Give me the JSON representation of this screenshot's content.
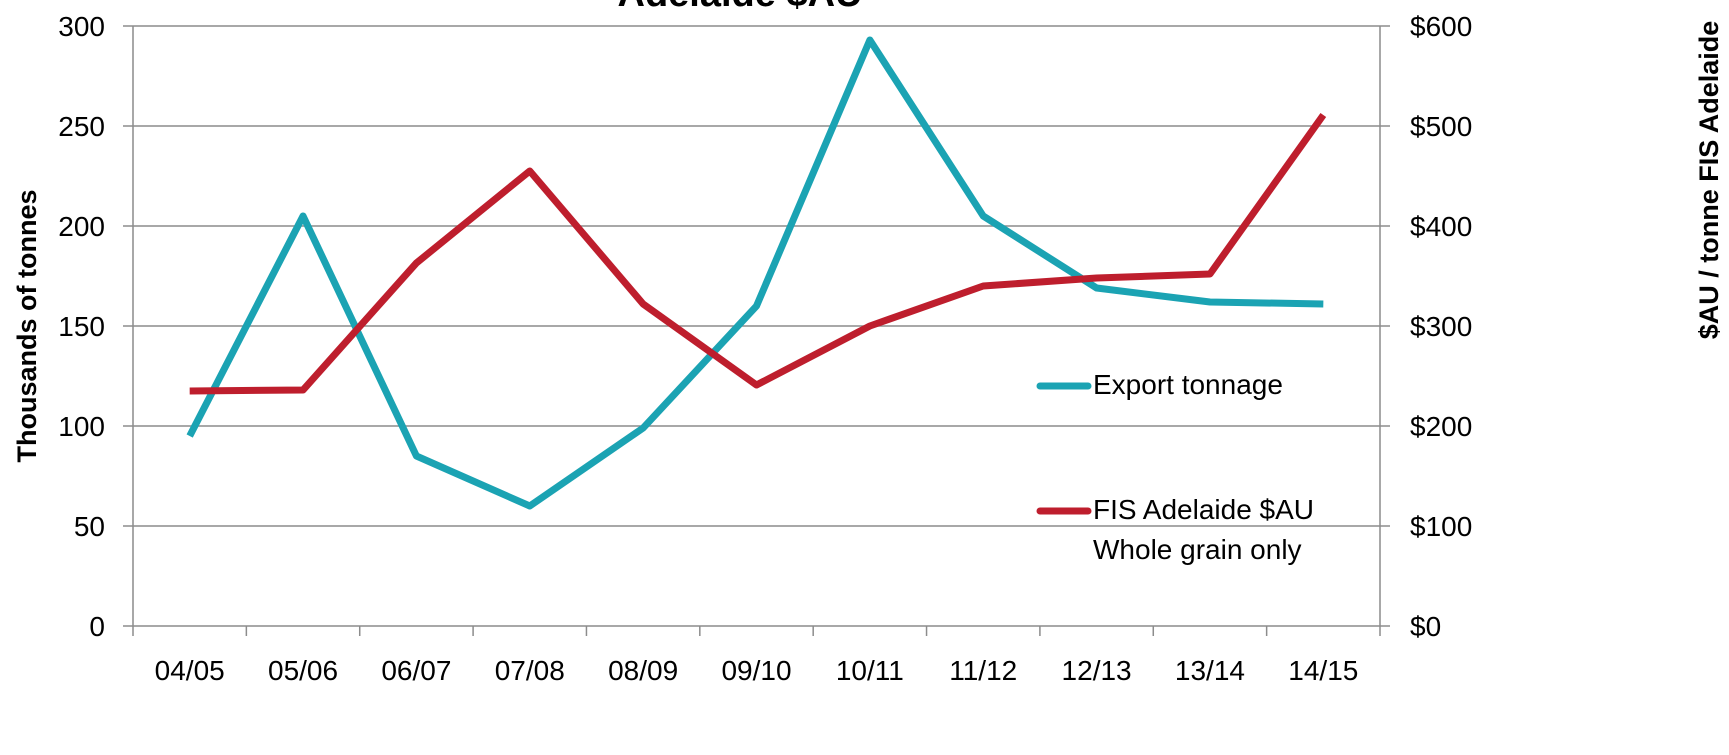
{
  "chart_data": {
    "type": "line",
    "title": "Adelaide $AU",
    "y_label": "Thousands of tonnes",
    "y2_label": "$AU / tonne  FIS Adelaide",
    "categories": [
      "04/05",
      "05/06",
      "06/07",
      "07/08",
      "08/09",
      "09/10",
      "10/11",
      "11/12",
      "12/13",
      "13/14",
      "14/15"
    ],
    "series": [
      {
        "name": "Export tonnage",
        "color": "#1ba3b3",
        "values": [
          95,
          205,
          85,
          60,
          99,
          160,
          293,
          205,
          169,
          162,
          161
        ]
      },
      {
        "name": "FIS Adelaide $AU Whole grain only",
        "color": "#be1e2d",
        "axis": "y2",
        "values": [
          235,
          236,
          363,
          455,
          322,
          241,
          300,
          340,
          348,
          352,
          511
        ]
      }
    ],
    "ylim": [
      0,
      300
    ],
    "yticks": [
      0,
      50,
      100,
      150,
      200,
      250,
      300
    ],
    "y2lim": [
      0,
      600
    ],
    "y2ticks": [
      {
        "value": 0,
        "label": "$0"
      },
      {
        "value": 100,
        "label": "$100"
      },
      {
        "value": 200,
        "label": "$200"
      },
      {
        "value": 300,
        "label": "$300"
      },
      {
        "value": 400,
        "label": "$400"
      },
      {
        "value": 500,
        "label": "$500"
      },
      {
        "value": 600,
        "label": "$600"
      }
    ],
    "grid": true
  }
}
